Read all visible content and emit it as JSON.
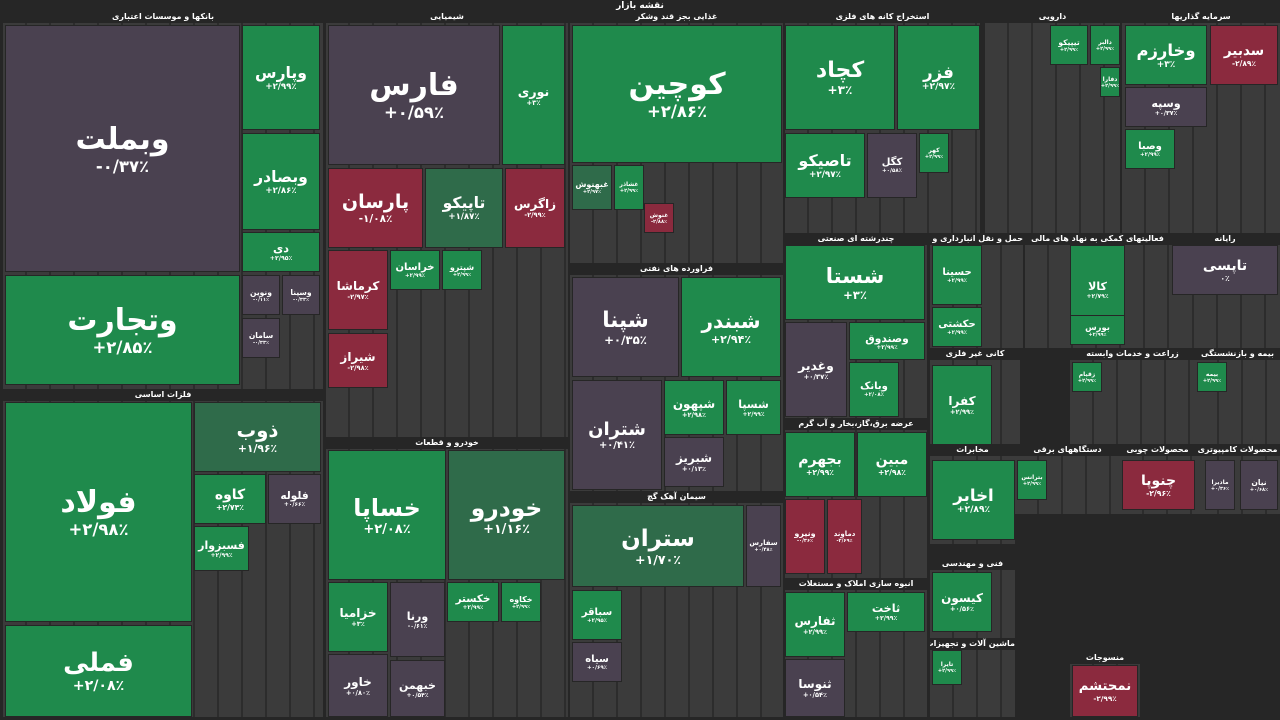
{
  "header": {
    "title": "نقشه بازار"
  },
  "sectors": [
    {
      "name": "بانکها و موسسات اعتباری",
      "tiles": [
        {
          "symbol": "وبملت",
          "change": "-۰/۳۷٪"
        },
        {
          "symbol": "وپارس",
          "change": "+۲/۹۹٪"
        },
        {
          "symbol": "وبصادر",
          "change": "+۲/۸۶٪"
        },
        {
          "symbol": "دی",
          "change": "+۲/۹۵٪"
        },
        {
          "symbol": "وتجارت",
          "change": "+۲/۸۵٪"
        },
        {
          "symbol": "ونوین",
          "change": "-۰/۱۱٪"
        },
        {
          "symbol": "وسینا",
          "change": "-۰/۳۳٪"
        },
        {
          "symbol": "سامان",
          "change": "-۰/۳۳٪"
        }
      ]
    },
    {
      "name": "فلزات اساسی",
      "tiles": [
        {
          "symbol": "فولاد",
          "change": "+۲/۹۸٪"
        },
        {
          "symbol": "ذوب",
          "change": "+۱/۹۶٪"
        },
        {
          "symbol": "کاوه",
          "change": "+۲/۷۳٪"
        },
        {
          "symbol": "فملی",
          "change": "+۲/۰۸٪"
        },
        {
          "symbol": "فلوله",
          "change": "+۰/۶۶٪"
        },
        {
          "symbol": "فسبزوار",
          "change": "+۲/۹۹٪"
        }
      ]
    },
    {
      "name": "شیمیایی",
      "tiles": [
        {
          "symbol": "فارس",
          "change": "+۰/۵۹٪"
        },
        {
          "symbol": "نوری",
          "change": "+۳٪"
        },
        {
          "symbol": "پارسان",
          "change": "-۱/۰۸٪"
        },
        {
          "symbol": "تاپیکو",
          "change": "+۱/۸۷٪"
        },
        {
          "symbol": "زاگرس",
          "change": "-۲/۹۹٪"
        },
        {
          "symbol": "کرماشا",
          "change": "-۲/۹۷٪"
        },
        {
          "symbol": "شیراز",
          "change": "-۲/۹۸٪"
        },
        {
          "symbol": "خراسان",
          "change": "+۲/۹۹٪"
        },
        {
          "symbol": "شپترو",
          "change": "+۲/۹۹٪"
        }
      ]
    },
    {
      "name": "خودرو و قطعات",
      "tiles": [
        {
          "symbol": "خساپا",
          "change": "+۲/۰۸٪"
        },
        {
          "symbol": "خودرو",
          "change": "+۱/۱۶٪"
        },
        {
          "symbol": "خزامیا",
          "change": "+۳٪"
        },
        {
          "symbol": "ورنا",
          "change": "-۰/۶۱٪"
        },
        {
          "symbol": "خاور",
          "change": "+۰/۸۰٪"
        },
        {
          "symbol": "خبهمن",
          "change": "+۰/۵۴٪"
        },
        {
          "symbol": "خکستر",
          "change": "+۲/۹۹٪"
        },
        {
          "symbol": "خکاوه",
          "change": "+۲/۹۹٪"
        }
      ]
    },
    {
      "name": "غذایی بجز قند وشکر",
      "tiles": [
        {
          "symbol": "کوچین",
          "change": "+۲/۸۶٪"
        },
        {
          "symbol": "غبهنوش",
          "change": "+۲/۹۷٪"
        },
        {
          "symbol": "غشاذر",
          "change": "+۲/۹۹٪"
        },
        {
          "symbol": "غنوش",
          "change": "-۲/۸۸٪"
        }
      ]
    },
    {
      "name": "فراورده های نفتی",
      "tiles": [
        {
          "symbol": "شپنا",
          "change": "+۰/۳۵٪"
        },
        {
          "symbol": "شبندر",
          "change": "+۲/۹۴٪"
        },
        {
          "symbol": "شتران",
          "change": "+۰/۴۱٪"
        },
        {
          "symbol": "شپهون",
          "change": "+۲/۹۸٪"
        },
        {
          "symbol": "شسپا",
          "change": "+۲/۹۹٪"
        },
        {
          "symbol": "شبریز",
          "change": "+۰/۱۳٪"
        }
      ]
    },
    {
      "name": "سیمان آهک گچ",
      "tiles": [
        {
          "symbol": "ستران",
          "change": "+۱/۷۰٪"
        },
        {
          "symbol": "سفارس",
          "change": "+۰/۴۸٪"
        },
        {
          "symbol": "سباقر",
          "change": "+۲/۹۵٪"
        },
        {
          "symbol": "سیاه",
          "change": "+۰/۶۹٪"
        }
      ]
    },
    {
      "name": "استخراج کانه های فلزی",
      "tiles": [
        {
          "symbol": "کچاد",
          "change": "+۳٪"
        },
        {
          "symbol": "فزر",
          "change": "+۲/۹۷٪"
        },
        {
          "symbol": "تاصیکو",
          "change": "+۲/۹۷٪"
        },
        {
          "symbol": "کگل",
          "change": "+۰/۵۸٪"
        },
        {
          "symbol": "کهر",
          "change": "+۲/۹۹٪"
        }
      ]
    },
    {
      "name": "چندرشته ای صنعتی",
      "tiles": [
        {
          "symbol": "شستا",
          "change": "+۳٪"
        },
        {
          "symbol": "وغدیر",
          "change": "+۰/۳۷٪"
        },
        {
          "symbol": "وبانک",
          "change": "+۲/۰۸٪"
        },
        {
          "symbol": "وصندوق",
          "change": "+۲/۹۹٪"
        }
      ]
    },
    {
      "name": "عرضه برق،گاز،بخار و آب گرم",
      "tiles": [
        {
          "symbol": "بجهرم",
          "change": "+۲/۹۹٪"
        },
        {
          "symbol": "مبین",
          "change": "+۲/۹۸٪"
        },
        {
          "symbol": "ونیرو",
          "change": "-۰/۳۶٪"
        },
        {
          "symbol": "دماوند",
          "change": "-۲/۶۹٪"
        }
      ]
    },
    {
      "name": "انبوه سازی املاک و مستغلات",
      "tiles": [
        {
          "symbol": "ثفارس",
          "change": "+۲/۹۹٪"
        },
        {
          "symbol": "ثاخت",
          "change": "+۲/۹۹٪"
        },
        {
          "symbol": "ثنوسا",
          "change": "+۰/۵۴٪"
        }
      ]
    },
    {
      "name": "دارویی",
      "tiles": [
        {
          "symbol": "دالبر",
          "change": "+۲/۹۹٪"
        },
        {
          "symbol": "تیپیکو",
          "change": "+۲/۹۹٪"
        },
        {
          "symbol": "دفارا",
          "change": "+۲/۹۹٪"
        }
      ]
    },
    {
      "name": "سرمایه گذاریها",
      "tiles": [
        {
          "symbol": "وخارزم",
          "change": "+۳٪"
        },
        {
          "symbol": "سدبیر",
          "change": "-۲/۸۹٪"
        },
        {
          "symbol": "وسپه",
          "change": "+۰/۳۷٪"
        },
        {
          "symbol": "وصبا",
          "change": "+۲/۹۹٪"
        }
      ]
    },
    {
      "name": "حمل و نقل انبارداری و ارتباطات",
      "tiles": [
        {
          "symbol": "حسینا",
          "change": "+۲/۹۹٪"
        },
        {
          "symbol": "حکشتی",
          "change": "+۲/۹۹٪"
        }
      ]
    },
    {
      "name": "فعالیتهای کمکی به نهاد های مالی",
      "tiles": [
        {
          "symbol": "کالا",
          "change": "+۲/۷۹٪"
        },
        {
          "symbol": "بورس",
          "change": "+۲/۹۹٪"
        }
      ]
    },
    {
      "name": "رایانه",
      "tiles": [
        {
          "symbol": "تاپسی",
          "change": "۰٪"
        }
      ]
    },
    {
      "name": "کانی غیر فلزی",
      "tiles": [
        {
          "symbol": "کفرا",
          "change": "+۲/۹۹٪"
        }
      ]
    },
    {
      "name": "زراعت و خدمات وابسته",
      "tiles": [
        {
          "symbol": "زقیام",
          "change": "+۲/۹۹٪"
        }
      ]
    },
    {
      "name": "بیمه و بازنشستگی",
      "tiles": [
        {
          "symbol": "بیمه",
          "change": "+۲/۹۹٪"
        }
      ]
    },
    {
      "name": "مخابرات",
      "tiles": [
        {
          "symbol": "اخابر",
          "change": "+۲/۸۹٪"
        }
      ]
    },
    {
      "name": "دستگاههای برقی",
      "tiles": [
        {
          "symbol": "بترانس",
          "change": "+۲/۹۹٪"
        }
      ]
    },
    {
      "name": "محصولات چوبی",
      "tiles": [
        {
          "symbol": "چنوپا",
          "change": "-۲/۹۶٪"
        }
      ]
    },
    {
      "name": "محصولات کامپیوتری",
      "tiles": [
        {
          "symbol": "مادیرا",
          "change": "+۰/۳۶٪"
        },
        {
          "symbol": "نیان",
          "change": "+۰/۶۸٪"
        }
      ]
    },
    {
      "name": "فنی و مهندسی",
      "tiles": [
        {
          "symbol": "کیسون",
          "change": "+۰/۵۶٪"
        }
      ]
    },
    {
      "name": "ماشین آلات و تجهیزات",
      "tiles": [
        {
          "symbol": "تایرا",
          "change": "+۲/۹۹٪"
        }
      ]
    },
    {
      "name": "منسوجات",
      "tiles": [
        {
          "symbol": "نمحتشم",
          "change": "-۲/۹۹٪"
        }
      ]
    }
  ]
}
